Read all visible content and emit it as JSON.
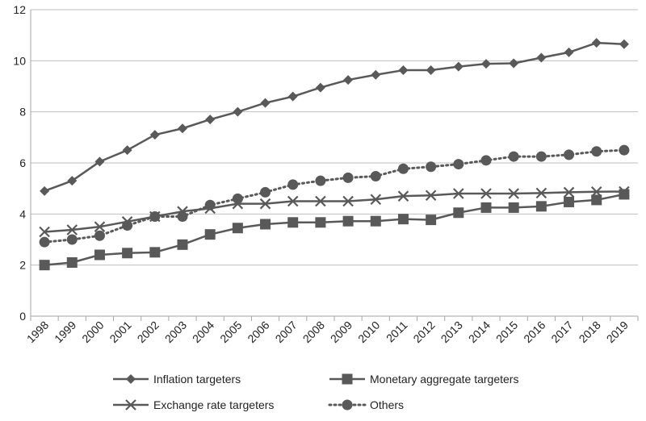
{
  "chart_data": {
    "type": "line",
    "title": "",
    "xlabel": "",
    "ylabel": "",
    "ylim": [
      0,
      12
    ],
    "yticks": [
      0,
      2,
      4,
      6,
      8,
      10,
      12
    ],
    "grid": "horizontal",
    "legend_position": "bottom",
    "categories": [
      "1998",
      "1999",
      "2000",
      "2001",
      "2002",
      "2003",
      "2004",
      "2005",
      "2006",
      "2007",
      "2008",
      "2009",
      "2010",
      "2011",
      "2012",
      "2013",
      "2014",
      "2015",
      "2016",
      "2017",
      "2018",
      "2019"
    ],
    "series": [
      {
        "name": "Inflation targeters",
        "marker": "diamond",
        "line_style": "solid",
        "color": "#595959",
        "values": [
          4.9,
          5.3,
          6.05,
          6.5,
          7.1,
          7.35,
          7.7,
          8.0,
          8.35,
          8.6,
          8.95,
          9.25,
          9.45,
          9.63,
          9.63,
          9.77,
          9.88,
          9.9,
          10.12,
          10.33,
          10.7,
          10.65
        ]
      },
      {
        "name": "Monetary aggregate targeters",
        "marker": "square",
        "line_style": "solid",
        "color": "#595959",
        "values": [
          2.0,
          2.1,
          2.4,
          2.47,
          2.5,
          2.8,
          3.2,
          3.45,
          3.6,
          3.67,
          3.67,
          3.72,
          3.72,
          3.8,
          3.77,
          4.05,
          4.25,
          4.25,
          4.3,
          4.47,
          4.55,
          4.77
        ]
      },
      {
        "name": "Exchange rate targeters",
        "marker": "x",
        "line_style": "solid",
        "color": "#595959",
        "values": [
          3.3,
          3.38,
          3.5,
          3.7,
          3.9,
          4.1,
          4.22,
          4.4,
          4.4,
          4.5,
          4.5,
          4.5,
          4.57,
          4.7,
          4.73,
          4.8,
          4.8,
          4.8,
          4.82,
          4.85,
          4.87,
          4.88
        ]
      },
      {
        "name": "Others",
        "marker": "circle",
        "line_style": "dotted",
        "color": "#595959",
        "values": [
          2.9,
          3.0,
          3.15,
          3.55,
          3.9,
          3.9,
          4.35,
          4.6,
          4.85,
          5.15,
          5.3,
          5.42,
          5.48,
          5.77,
          5.85,
          5.95,
          6.1,
          6.25,
          6.25,
          6.32,
          6.45,
          6.5
        ]
      }
    ]
  }
}
